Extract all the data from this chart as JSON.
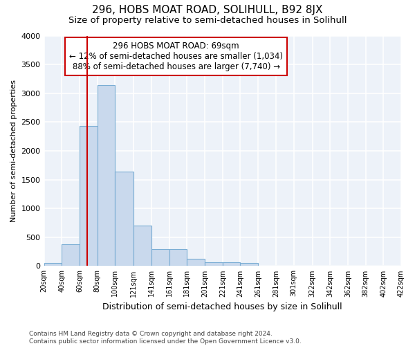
{
  "title": "296, HOBS MOAT ROAD, SOLIHULL, B92 8JX",
  "subtitle": "Size of property relative to semi-detached houses in Solihull",
  "xlabel": "Distribution of semi-detached houses by size in Solihull",
  "ylabel": "Number of semi-detached properties",
  "footnote": "Contains HM Land Registry data © Crown copyright and database right 2024.\nContains public sector information licensed under the Open Government Licence v3.0.",
  "bar_edges": [
    20,
    40,
    60,
    80,
    100,
    121,
    141,
    161,
    181,
    201,
    221,
    241,
    261,
    281,
    301,
    322,
    342,
    362,
    382,
    402,
    422
  ],
  "bar_heights": [
    50,
    380,
    2430,
    3140,
    1640,
    700,
    290,
    290,
    130,
    70,
    60,
    55,
    0,
    0,
    0,
    0,
    0,
    0,
    0,
    0
  ],
  "bar_color": "#c9d9ed",
  "bar_edge_color": "#7aadd4",
  "property_size": 69,
  "vline_color": "#cc0000",
  "ylim": [
    0,
    4000
  ],
  "yticks": [
    0,
    500,
    1000,
    1500,
    2000,
    2500,
    3000,
    3500,
    4000
  ],
  "annotation_box_text": "296 HOBS MOAT ROAD: 69sqm\n← 12% of semi-detached houses are smaller (1,034)\n88% of semi-detached houses are larger (7,740) →",
  "annotation_box_color": "#ffffff",
  "annotation_box_edge_color": "#cc0000",
  "background_color": "#edf2f9",
  "grid_color": "#ffffff",
  "title_fontsize": 11,
  "subtitle_fontsize": 9.5,
  "xlabel_fontsize": 9,
  "ylabel_fontsize": 8,
  "annot_fontsize": 8.5,
  "footnote_fontsize": 6.5,
  "tick_labels": [
    "20sqm",
    "40sqm",
    "60sqm",
    "80sqm",
    "100sqm",
    "121sqm",
    "141sqm",
    "161sqm",
    "181sqm",
    "201sqm",
    "221sqm",
    "241sqm",
    "261sqm",
    "281sqm",
    "301sqm",
    "322sqm",
    "342sqm",
    "362sqm",
    "382sqm",
    "402sqm",
    "422sqm"
  ]
}
